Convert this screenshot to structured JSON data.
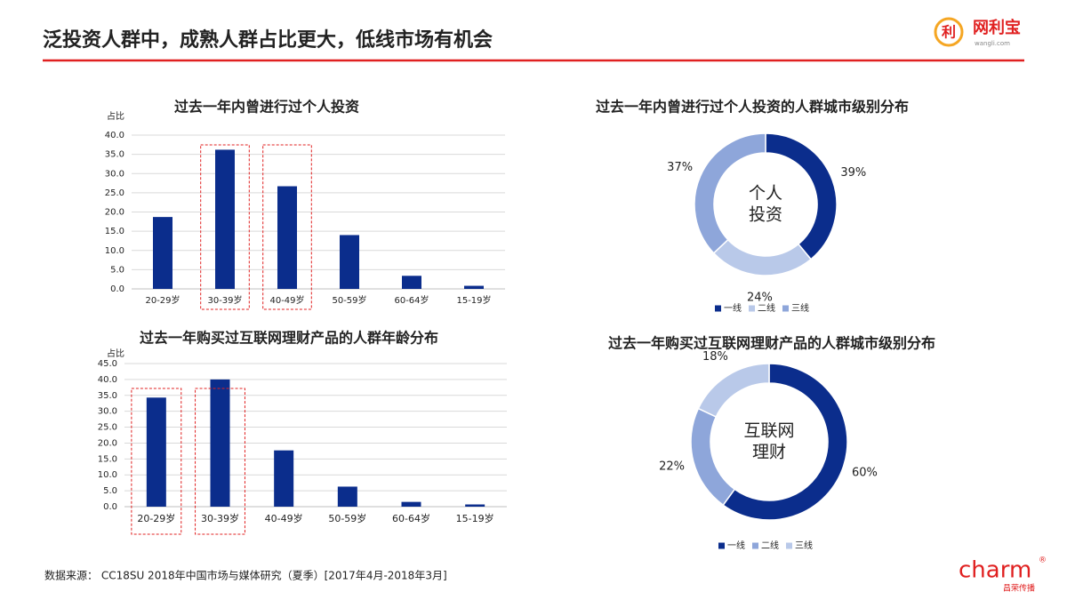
{
  "header": {
    "title": "泛投资人群中，成熟人群占比更大，低线市场有机会",
    "logo_icon": "利",
    "logo_text": "网利宝",
    "logo_sub": "wangli.com"
  },
  "footer": {
    "source": "数据来源：  CC18SU 2018年中国市场与媒体研究（夏季）[2017年4月-2018年3月]",
    "brand": "charm",
    "brand_mark": "®",
    "brand_sub": "昌荣传播"
  },
  "chart_data": [
    {
      "type": "bar",
      "title": "过去一年内曾进行过个人投资",
      "y_label": "占比",
      "color": "#0b2d8c",
      "categories": [
        "20-29岁",
        "30-39岁",
        "40-49岁",
        "50-59岁",
        "60-64岁",
        "15-19岁"
      ],
      "values": [
        18.7,
        36.2,
        26.7,
        14.0,
        3.4,
        0.8
      ],
      "highlight": [
        1,
        2
      ],
      "ylim": [
        0,
        40
      ],
      "grid": true,
      "yticks": [
        {
          "value": 0,
          "label": "0.0"
        },
        {
          "value": 5,
          "label": "5.0"
        },
        {
          "value": 10,
          "label": "10.0"
        },
        {
          "value": 15,
          "label": "15.0"
        },
        {
          "value": 20,
          "label": "20.0"
        },
        {
          "value": 25,
          "label": "25.0"
        },
        {
          "value": 30,
          "label": "30.0"
        },
        {
          "value": 35,
          "label": "35.0"
        },
        {
          "value": 40,
          "label": "40.0"
        }
      ]
    },
    {
      "type": "bar",
      "title": "过去一年购买过互联网理财产品的人群年龄分布",
      "y_label": "占比",
      "color": "#0b2d8c",
      "categories": [
        "20-29岁",
        "30-39岁",
        "40-49岁",
        "50-59岁",
        "60-64岁",
        "15-19岁"
      ],
      "values": [
        34.3,
        40.0,
        17.7,
        6.3,
        1.5,
        0.7
      ],
      "highlight": [
        0,
        1
      ],
      "ylim": [
        0,
        45
      ],
      "grid": true,
      "yticks": [
        {
          "value": 0,
          "label": "0.0"
        },
        {
          "value": 5,
          "label": "5.0"
        },
        {
          "value": 10,
          "label": "10.0"
        },
        {
          "value": 15,
          "label": "15.0"
        },
        {
          "value": 20,
          "label": "20.0"
        },
        {
          "value": 25,
          "label": "25.0"
        },
        {
          "value": 30,
          "label": "30.0"
        },
        {
          "value": 35,
          "label": "35.0"
        },
        {
          "value": 40,
          "label": "40.0"
        },
        {
          "value": 45,
          "label": "45.0"
        }
      ]
    },
    {
      "type": "donut",
      "title": "过去一年内曾进行过个人投资的人群城市级别分布",
      "center_label": [
        "个人",
        "投资"
      ],
      "categories": [
        "一线",
        "二线",
        "三线"
      ],
      "values": [
        39,
        24,
        37
      ],
      "value_labels": [
        "39%",
        "24%",
        "37%"
      ],
      "colors": [
        "#0b2d8c",
        "#b9c9e9",
        "#8ea6da"
      ],
      "legend": "bottom"
    },
    {
      "type": "donut",
      "title": "过去一年购买过互联网理财产品的人群城市级别分布",
      "center_label": [
        "互联网",
        "理财"
      ],
      "categories": [
        "一线",
        "二线",
        "三线"
      ],
      "values": [
        60,
        22,
        18
      ],
      "value_labels": [
        "60%",
        "22%",
        "18%"
      ],
      "colors": [
        "#0b2d8c",
        "#8ea6da",
        "#b9c9e9"
      ],
      "legend": "bottom"
    }
  ]
}
